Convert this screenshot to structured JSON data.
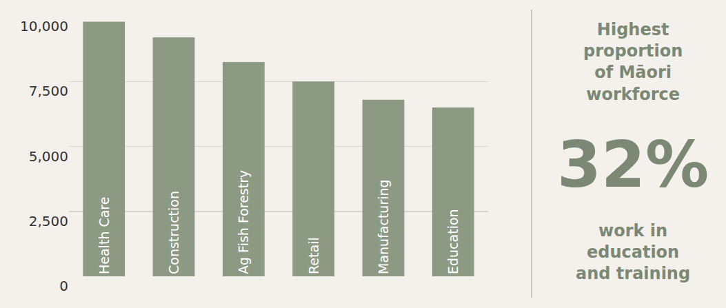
{
  "chart_data": {
    "type": "bar",
    "categories": [
      "Health Care",
      "Construction",
      "Ag Fish Forestry",
      "Retail",
      "Manufacturing",
      "Education"
    ],
    "values": [
      9800,
      9200,
      8250,
      7500,
      6800,
      6500
    ],
    "color": "#8c9a84",
    "ylim": [
      0,
      10000
    ],
    "yticks": [
      0,
      {
        "value": 2500,
        "label": "2,500"
      },
      {
        "value": 5000,
        "label": "5,000"
      },
      {
        "value": 7500,
        "label": "7,500"
      },
      {
        "value": 10000,
        "label": "10,000"
      }
    ],
    "grid": true,
    "data_labels": false,
    "tick_labels": "y",
    "annotations": [
      {
        "text": "Highest\nproportion\nof Māori\nworkforce"
      },
      {
        "text": "32%"
      },
      {
        "text": "work in\neducation\nand training"
      }
    ]
  }
}
